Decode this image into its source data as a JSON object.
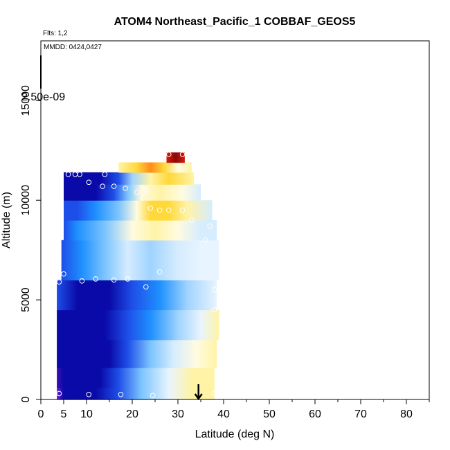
{
  "chart_data": {
    "type": "heatmap",
    "title": "ATOM4 Northeast_Pacific_1 COBBAF_GEOS5",
    "annotations": {
      "flights": "Flts: 1,2",
      "dates": "MMDD: 0424,0427",
      "colorbar_value": "2.50e-09"
    },
    "xlabel": "Latitude (deg N)",
    "ylabel": "Altitude (m)",
    "xlim": [
      0,
      85
    ],
    "ylim": [
      0,
      18000
    ],
    "x_ticks": [
      0,
      5,
      10,
      20,
      30,
      40,
      50,
      60,
      70,
      80
    ],
    "x_minor_tick_step": 5,
    "y_ticks": [
      0,
      5000,
      10000,
      15000
    ],
    "grid": false,
    "marker_latitude": 34.5,
    "colors": {
      "deep_violet": "#6a1fd0",
      "navy": "#0a0aa8",
      "blue": "#1e4ee8",
      "azure": "#1e90ff",
      "sky": "#7cc4ff",
      "pale_blue": "#d6ecff",
      "ivory": "#fffbe0",
      "pale_yellow": "#fff3a6",
      "yellow": "#ffd83a",
      "orange": "#ff8c1a",
      "red": "#d61a0a",
      "dark_red": "#8a0a0a"
    },
    "layers": [
      {
        "z0": 0,
        "z1": 600,
        "x0": 3.5,
        "x1": 38.0,
        "stops": [
          [
            3.5,
            "#6a1fd0"
          ],
          [
            5,
            "#0a0aa8"
          ],
          [
            12,
            "#0a0aa8"
          ],
          [
            17,
            "#1e4ee8"
          ],
          [
            22,
            "#7cc4ff"
          ],
          [
            28,
            "#e8f4ff"
          ],
          [
            33,
            "#fff3a6"
          ],
          [
            38,
            "#fff3a6"
          ]
        ]
      },
      {
        "z0": 600,
        "z1": 1600,
        "x0": 3.5,
        "x1": 38.0,
        "stops": [
          [
            3.5,
            "#3a10b0"
          ],
          [
            5,
            "#0a0aa8"
          ],
          [
            13,
            "#0a0aa8"
          ],
          [
            17,
            "#1e4ee8"
          ],
          [
            22,
            "#7cc4ff"
          ],
          [
            28,
            "#e8f4ff"
          ],
          [
            33,
            "#fff3a6"
          ],
          [
            38,
            "#fff3a6"
          ]
        ]
      },
      {
        "z0": 1600,
        "z1": 3000,
        "x0": 3.5,
        "x1": 38.5,
        "stops": [
          [
            3.5,
            "#0a0aa8"
          ],
          [
            10,
            "#0a0aa8"
          ],
          [
            15,
            "#0a0aa8"
          ],
          [
            19,
            "#1e4ee8"
          ],
          [
            24,
            "#7cc4ff"
          ],
          [
            29,
            "#d6ecff"
          ],
          [
            34,
            "#fffbe0"
          ],
          [
            38.5,
            "#fff3a6"
          ]
        ]
      },
      {
        "z0": 3000,
        "z1": 4500,
        "x0": 3.5,
        "x1": 39.0,
        "stops": [
          [
            3.5,
            "#0a0aa8"
          ],
          [
            14,
            "#0a0aa8"
          ],
          [
            19,
            "#1e4ee8"
          ],
          [
            24,
            "#1e90ff"
          ],
          [
            30,
            "#9fd3ff"
          ],
          [
            35,
            "#e8f4ff"
          ],
          [
            39,
            "#fff3a6"
          ]
        ]
      },
      {
        "z0": 4500,
        "z1": 6000,
        "x0": 3.5,
        "x1": 38.5,
        "stops": [
          [
            3.5,
            "#1e4ee8"
          ],
          [
            8,
            "#0a0aa8"
          ],
          [
            15,
            "#0a0aa8"
          ],
          [
            20,
            "#1e4ee8"
          ],
          [
            26,
            "#1e90ff"
          ],
          [
            32,
            "#9fd3ff"
          ],
          [
            38.5,
            "#e8f4ff"
          ]
        ]
      },
      {
        "z0": 6000,
        "z1": 8000,
        "x0": 4.5,
        "x1": 39.0,
        "stops": [
          [
            4.5,
            "#1e4ee8"
          ],
          [
            9,
            "#1e90ff"
          ],
          [
            14,
            "#7cc4ff"
          ],
          [
            19,
            "#d6ecff"
          ],
          [
            24,
            "#9fd3ff"
          ],
          [
            30,
            "#d6ecff"
          ],
          [
            35,
            "#e8f4ff"
          ],
          [
            39,
            "#e8f4ff"
          ]
        ]
      },
      {
        "z0": 8000,
        "z1": 9000,
        "x0": 5.0,
        "x1": 38.5,
        "stops": [
          [
            5,
            "#1e4ee8"
          ],
          [
            8,
            "#1e90ff"
          ],
          [
            14,
            "#7cc4ff"
          ],
          [
            20,
            "#fffbe0"
          ],
          [
            25,
            "#fff3a6"
          ],
          [
            30,
            "#fffbe0"
          ],
          [
            35,
            "#d6ecff"
          ],
          [
            38.5,
            "#d6ecff"
          ]
        ]
      },
      {
        "z0": 9000,
        "z1": 10000,
        "x0": 5.0,
        "x1": 37.5,
        "stops": [
          [
            5,
            "#1e4ee8"
          ],
          [
            8,
            "#1e4ee8"
          ],
          [
            12,
            "#1e90ff"
          ],
          [
            17,
            "#7cc4ff"
          ],
          [
            21,
            "#fffbe0"
          ],
          [
            24,
            "#ffd83a"
          ],
          [
            28,
            "#ffd83a"
          ],
          [
            32,
            "#fff3a6"
          ],
          [
            37.5,
            "#d6ecff"
          ]
        ]
      },
      {
        "z0": 10000,
        "z1": 10800,
        "x0": 5.0,
        "x1": 35.0,
        "stops": [
          [
            5,
            "#0a0aa8"
          ],
          [
            12,
            "#0a0aa8"
          ],
          [
            16,
            "#1e4ee8"
          ],
          [
            19,
            "#7cc4ff"
          ],
          [
            22,
            "#fffbe0"
          ],
          [
            26,
            "#fff3a6"
          ],
          [
            31,
            "#fffbe0"
          ],
          [
            35,
            "#d6ecff"
          ]
        ]
      },
      {
        "z0": 10800,
        "z1": 11400,
        "x0": 5.0,
        "x1": 33.5,
        "stops": [
          [
            5,
            "#0a0aa8"
          ],
          [
            13,
            "#0a0aa8"
          ],
          [
            17,
            "#1e4ee8"
          ],
          [
            20,
            "#9fd3ff"
          ],
          [
            24,
            "#fff3a6"
          ],
          [
            28,
            "#ffd83a"
          ],
          [
            33.5,
            "#fff3a6"
          ]
        ]
      },
      {
        "z0": 11400,
        "z1": 11900,
        "x0": 17.0,
        "x1": 33.0,
        "stops": [
          [
            17,
            "#fff3a6"
          ],
          [
            21,
            "#ffd83a"
          ],
          [
            24,
            "#ff8c1a"
          ],
          [
            27,
            "#ffd83a"
          ],
          [
            30,
            "#fffbe0"
          ],
          [
            33,
            "#fff3a6"
          ]
        ]
      },
      {
        "z0": 11900,
        "z1": 12400,
        "x0": 27.5,
        "x1": 31.5,
        "stops": [
          [
            27.5,
            "#d61a0a"
          ],
          [
            29.5,
            "#8a0a0a"
          ],
          [
            31.5,
            "#d61a0a"
          ]
        ]
      }
    ],
    "points": [
      {
        "x": 4,
        "y": 300
      },
      {
        "x": 10.5,
        "y": 250
      },
      {
        "x": 17.5,
        "y": 250
      },
      {
        "x": 24.5,
        "y": 200
      },
      {
        "x": 38,
        "y": 300
      },
      {
        "x": 4,
        "y": 5900
      },
      {
        "x": 5,
        "y": 6300
      },
      {
        "x": 9,
        "y": 5950
      },
      {
        "x": 12,
        "y": 6050
      },
      {
        "x": 16,
        "y": 6000
      },
      {
        "x": 19,
        "y": 6050
      },
      {
        "x": 23,
        "y": 5650
      },
      {
        "x": 26,
        "y": 6400
      },
      {
        "x": 38,
        "y": 4500
      },
      {
        "x": 38,
        "y": 5500
      },
      {
        "x": 36,
        "y": 8000
      },
      {
        "x": 37,
        "y": 8700
      },
      {
        "x": 24,
        "y": 9600
      },
      {
        "x": 26,
        "y": 9500
      },
      {
        "x": 28,
        "y": 9500
      },
      {
        "x": 31,
        "y": 9500
      },
      {
        "x": 33,
        "y": 9000
      },
      {
        "x": 21,
        "y": 10400
      },
      {
        "x": 23,
        "y": 10500
      },
      {
        "x": 6,
        "y": 11300
      },
      {
        "x": 7.5,
        "y": 11300
      },
      {
        "x": 8.5,
        "y": 11300
      },
      {
        "x": 10.5,
        "y": 10900
      },
      {
        "x": 14,
        "y": 11300
      },
      {
        "x": 13.5,
        "y": 10700
      },
      {
        "x": 16,
        "y": 10700
      },
      {
        "x": 18.5,
        "y": 10600
      },
      {
        "x": 28,
        "y": 12300
      },
      {
        "x": 31,
        "y": 12300
      }
    ]
  }
}
